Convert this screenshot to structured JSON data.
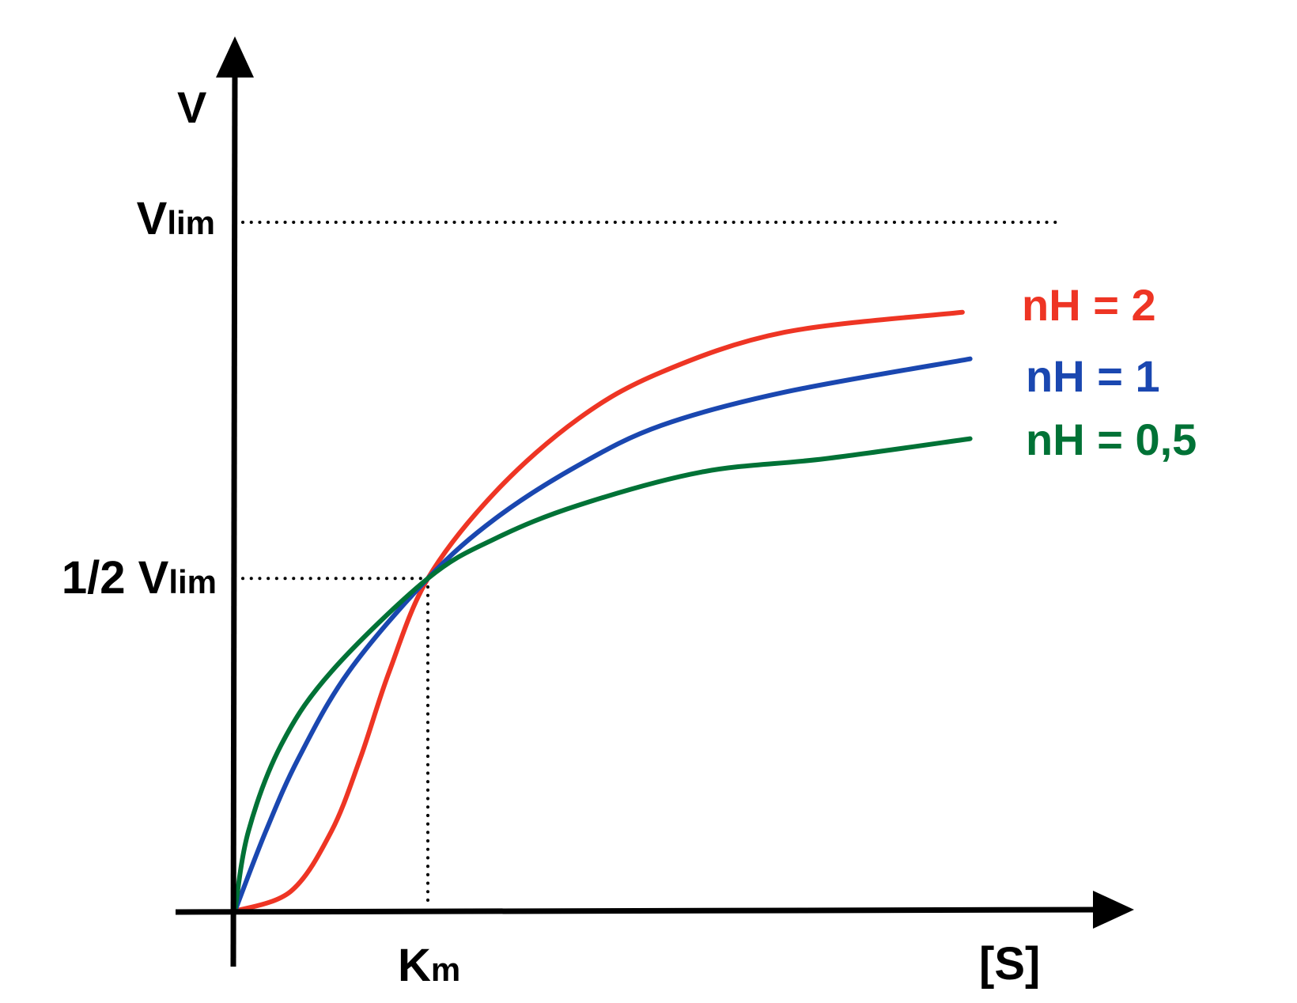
{
  "chart_data": {
    "type": "line",
    "title": "",
    "xlabel": "[S]",
    "ylabel": "V",
    "x_ticks": [
      {
        "value": 1,
        "main": "K",
        "sub": "m"
      }
    ],
    "y_ticks": [
      {
        "value": 1,
        "main": "V",
        "sub": "lim",
        "key": "vlim"
      },
      {
        "value": 0.5,
        "main": "1/2 V",
        "sub": "lim",
        "key": "half"
      }
    ],
    "xlim": [
      0,
      4.4
    ],
    "ylim": [
      0,
      1
    ],
    "grid": false,
    "legend_placement": "right, at curve ends",
    "series": [
      {
        "name": "nH = 2",
        "color": "#EE3524",
        "x": [
          0,
          0.29,
          0.5,
          0.65,
          0.8,
          1,
          1.35,
          1.78,
          2.21,
          2.85,
          3.77
        ],
        "y": [
          0,
          0.03,
          0.12,
          0.23,
          0.36,
          0.5,
          0.63,
          0.74,
          0.81,
          0.87,
          0.9
        ]
      },
      {
        "name": "nH = 1",
        "color": "#1A47B0",
        "x": [
          0,
          0.16,
          0.33,
          0.59,
          1,
          1.35,
          1.78,
          2.21,
          2.85,
          3.81
        ],
        "y": [
          0,
          0.12,
          0.23,
          0.36,
          0.5,
          0.59,
          0.67,
          0.73,
          0.78,
          0.83
        ]
      },
      {
        "name": "nH = 0,5",
        "color": "#007236",
        "x": [
          0,
          0.07,
          0.24,
          0.5,
          1,
          1.35,
          1.78,
          2.42,
          3.06,
          3.81
        ],
        "y": [
          0,
          0.12,
          0.25,
          0.36,
          0.5,
          0.56,
          0.61,
          0.66,
          0.68,
          0.71
        ]
      }
    ]
  }
}
